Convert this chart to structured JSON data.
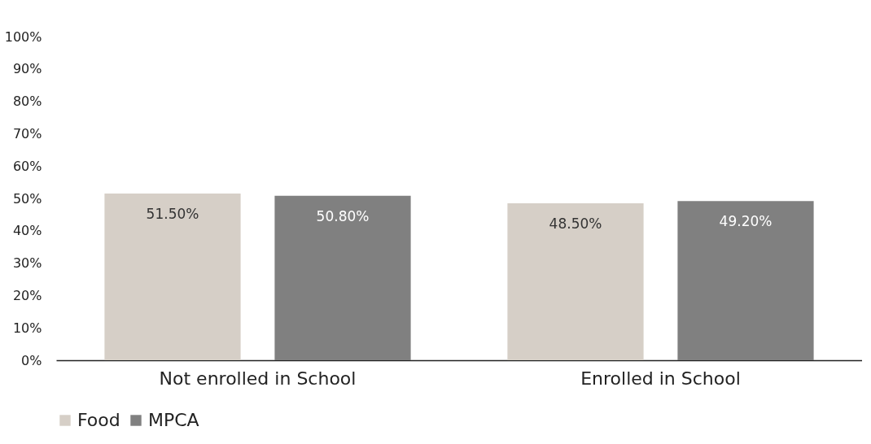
{
  "chart_data": {
    "type": "bar",
    "categories": [
      "Not enrolled in School",
      "Enrolled in School"
    ],
    "series": [
      {
        "name": "Food",
        "color": "#d6cfc7",
        "values": [
          51.5,
          48.5
        ],
        "value_labels": [
          "51.50%",
          "48.50%"
        ]
      },
      {
        "name": "MPCA",
        "color": "#808080",
        "values": [
          50.8,
          49.2
        ],
        "value_labels": [
          "50.80%",
          "49.20%"
        ]
      }
    ],
    "ylim": [
      0,
      100
    ],
    "yticks": [
      {
        "value": 0,
        "label": "0%"
      },
      {
        "value": 10,
        "label": "10%"
      },
      {
        "value": 20,
        "label": "20%"
      },
      {
        "value": 30,
        "label": "30%"
      },
      {
        "value": 40,
        "label": "40%"
      },
      {
        "value": 50,
        "label": "50%"
      },
      {
        "value": 60,
        "label": "60%"
      },
      {
        "value": 70,
        "label": "70%"
      },
      {
        "value": 80,
        "label": "80%"
      },
      {
        "value": 90,
        "label": "90%"
      },
      {
        "value": 100,
        "label": "100%"
      }
    ],
    "grid": false,
    "legend": "bottom"
  }
}
